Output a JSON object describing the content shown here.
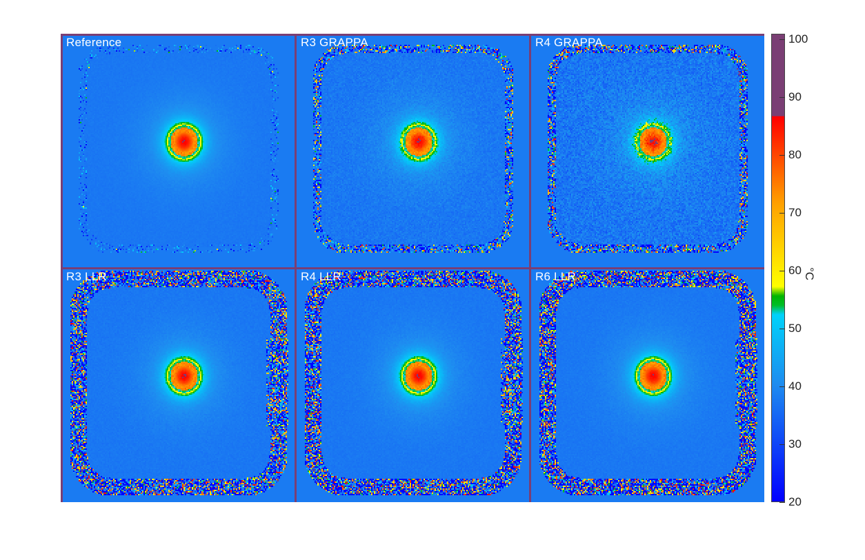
{
  "panels": [
    {
      "label": "Reference"
    },
    {
      "label": "R3 GRAPPA"
    },
    {
      "label": "R4 GRAPPA"
    },
    {
      "label": "R3 LLR"
    },
    {
      "label": "R4 LLR"
    },
    {
      "label": "R6 LLR"
    }
  ],
  "colorbar": {
    "unit": "°C",
    "min": 20,
    "max": 100,
    "ticks": [
      "20",
      "30",
      "40",
      "50",
      "60",
      "70",
      "80",
      "90",
      "100"
    ]
  },
  "colors": {
    "background": "#1f8ff2",
    "grid_border": "#7a3e74"
  }
}
